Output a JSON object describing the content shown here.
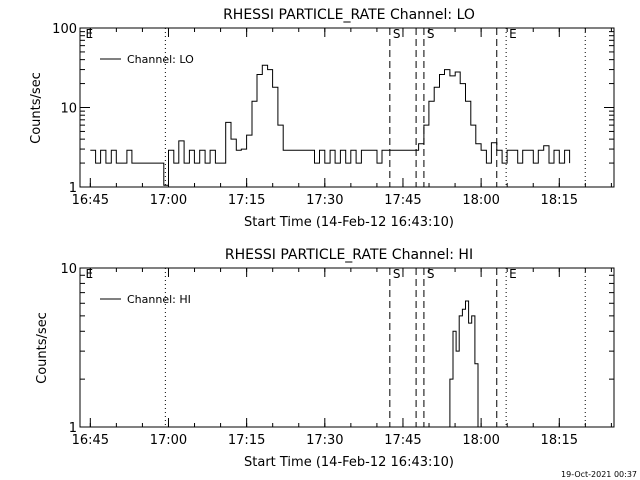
{
  "chart_data": [
    {
      "type": "line",
      "title": "RHESSI PARTICLE_RATE Channel: LO",
      "xlabel": "Start Time (14-Feb-12 16:43:10)",
      "ylabel": "Counts/sec",
      "y_scale": "log",
      "ylim": [
        1,
        100
      ],
      "y_ticks": [
        1,
        10,
        100
      ],
      "y_tick_labels": [
        "1",
        "10",
        "100"
      ],
      "x_range_hours": [
        16.717,
        18.425
      ],
      "x_ticks": [
        16.75,
        17.0,
        17.25,
        17.5,
        17.75,
        18.0,
        18.25
      ],
      "x_tick_labels": [
        "16:45",
        "17:00",
        "17:15",
        "17:30",
        "17:45",
        "18:00",
        "18:15"
      ],
      "legend": "top-left",
      "series": [
        {
          "name": "Channel: LO",
          "x": [
            16.75,
            16.767,
            16.783,
            16.8,
            16.817,
            16.833,
            16.85,
            16.867,
            16.883,
            16.9,
            16.917,
            16.933,
            16.95,
            16.967,
            16.98,
            16.985,
            17.0,
            17.017,
            17.033,
            17.05,
            17.067,
            17.083,
            17.1,
            17.117,
            17.133,
            17.15,
            17.167,
            17.183,
            17.2,
            17.217,
            17.233,
            17.25,
            17.267,
            17.283,
            17.3,
            17.317,
            17.333,
            17.35,
            17.367,
            17.383,
            17.4,
            17.417,
            17.433,
            17.45,
            17.467,
            17.483,
            17.5,
            17.517,
            17.533,
            17.55,
            17.567,
            17.583,
            17.6,
            17.617,
            17.633,
            17.65,
            17.667,
            17.683,
            17.7,
            17.717,
            17.733,
            17.75,
            17.767,
            17.783,
            17.8,
            17.817,
            17.833,
            17.85,
            17.867,
            17.883,
            17.9,
            17.917,
            17.933,
            17.95,
            17.967,
            17.983,
            18.0,
            18.017,
            18.033,
            18.05,
            18.067,
            18.083,
            18.1,
            18.117,
            18.133,
            18.15,
            18.167,
            18.183,
            18.2,
            18.217,
            18.233,
            18.25,
            18.267,
            18.283
          ],
          "y": [
            2.9,
            2.0,
            2.9,
            2.0,
            2.9,
            2.0,
            2.0,
            2.9,
            2.0,
            2.0,
            2.0,
            2.0,
            2.0,
            2.0,
            2.0,
            1.05,
            2.9,
            2.0,
            3.8,
            2.0,
            2.9,
            2.0,
            2.9,
            2.0,
            2.9,
            2.0,
            2.0,
            6.5,
            4.0,
            2.9,
            3.0,
            4.5,
            12,
            26,
            34,
            30,
            18,
            6,
            2.9,
            2.9,
            2.9,
            2.9,
            2.9,
            2.9,
            2.0,
            2.9,
            2.0,
            2.9,
            2.0,
            2.9,
            2.0,
            2.9,
            2.0,
            2.9,
            2.9,
            2.9,
            2.0,
            2.9,
            2.9,
            2.9,
            2.9,
            2.9,
            2.9,
            2.9,
            3.5,
            6,
            12,
            18,
            26,
            30,
            25,
            28,
            20,
            12,
            6,
            3.5,
            2.9,
            2.0,
            3.6,
            2.9,
            2.0,
            2.9,
            2.9,
            2.0,
            2.9,
            2.9,
            2.0,
            2.9,
            3.3,
            2.0,
            2.9,
            2.0,
            2.9,
            2.0
          ]
        }
      ],
      "vertical_markers": [
        {
          "x": 16.99,
          "style": "dotted",
          "label": ""
        },
        {
          "x": 16.725,
          "style": "none",
          "label": "E"
        },
        {
          "x": 17.708,
          "style": "dashed",
          "label": "S"
        },
        {
          "x": 17.792,
          "style": "dashed",
          "label": ""
        },
        {
          "x": 17.817,
          "style": "dashed",
          "label": "S"
        },
        {
          "x": 18.05,
          "style": "dashed",
          "label": ""
        },
        {
          "x": 18.08,
          "style": "dotted",
          "label": "E"
        },
        {
          "x": 18.333,
          "style": "dotted",
          "label": ""
        }
      ]
    },
    {
      "type": "line",
      "title": "RHESSI PARTICLE_RATE Channel: HI",
      "xlabel": "Start Time (14-Feb-12 16:43:10)",
      "ylabel": "Counts/sec",
      "y_scale": "log",
      "ylim": [
        1,
        10
      ],
      "y_ticks": [
        1,
        10
      ],
      "y_tick_labels": [
        "1",
        "10"
      ],
      "x_range_hours": [
        16.717,
        18.425
      ],
      "x_ticks": [
        16.75,
        17.0,
        17.25,
        17.5,
        17.75,
        18.0,
        18.25
      ],
      "x_tick_labels": [
        "16:45",
        "17:00",
        "17:15",
        "17:30",
        "17:45",
        "18:00",
        "18:15"
      ],
      "legend": "top-left",
      "series": [
        {
          "name": "Channel: HI",
          "x": [
            17.89,
            17.9,
            17.91,
            17.92,
            17.93,
            17.94,
            17.95,
            17.96,
            17.97,
            17.98,
            17.99
          ],
          "y": [
            1,
            2.0,
            4.0,
            3.0,
            5.0,
            5.5,
            6.2,
            4.5,
            5.0,
            2.5,
            1
          ]
        }
      ],
      "vertical_markers": [
        {
          "x": 16.99,
          "style": "dotted",
          "label": ""
        },
        {
          "x": 16.725,
          "style": "none",
          "label": "E"
        },
        {
          "x": 17.708,
          "style": "dashed",
          "label": "S"
        },
        {
          "x": 17.792,
          "style": "dashed",
          "label": ""
        },
        {
          "x": 17.817,
          "style": "dashed",
          "label": "S"
        },
        {
          "x": 18.05,
          "style": "dashed",
          "label": ""
        },
        {
          "x": 18.08,
          "style": "dotted",
          "label": "E"
        },
        {
          "x": 18.333,
          "style": "dotted",
          "label": ""
        }
      ]
    }
  ],
  "footer": {
    "timestamp": "19-Oct-2021 00:37"
  }
}
